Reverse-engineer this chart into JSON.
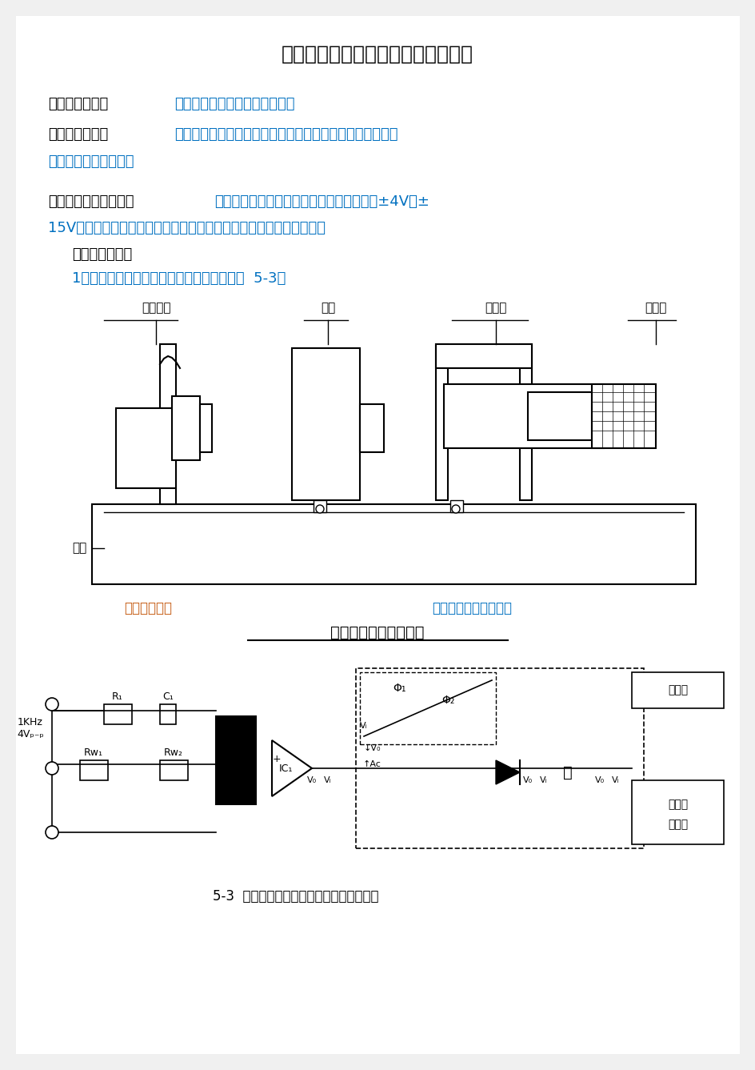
{
  "title": "交流激励时霍尔式传感器的位移实验",
  "title_color": "#000000",
  "bg_color": "#f0f0f0",
  "page_bg": "#ffffff",
  "section1_label": "一、实验目的：",
  "section1_text": "了解交流激励时霍尔片的特性。",
  "section2_label": "二、基本原理：",
  "section2_text1": "交流激励时霍尔元件与直流激励一样，基本工作原理相同，",
  "section2_text2": "不同之处是测量电路。",
  "section3_label": "三、需用器件与单元：",
  "section3_text1": "霍尔传感器实验模板、霍尔传感器、直流源±4V、±",
  "section3_text2": "15V、测微头、数显单元，相敏检波、移相、滤波模板、双线示波器。",
  "section4_label": "四、实验步骤：",
  "section4_step1": "1、传感器安装如下图，实验模板上连线见图  5-3。",
  "fig1_label1": "霍尔元件",
  "fig1_label2": "模板",
  "fig1_label3": "测量架",
  "fig1_label4": "测微头",
  "fig1_label5": "磁钢",
  "fig1_caption1": "霍尔实验模板",
  "fig1_caption2": "移相、相敏、低通模板",
  "fig1_title": "霍尔传感器安装示意图",
  "fig2_caption": "5-3  交流激励时霍尔传感器位移实验接线图",
  "label_color_blue": "#0070c0",
  "label_color_orange": "#c55a11",
  "text_color_black": "#000000",
  "text_color_blue": "#0070c0",
  "heading_color": "#000000"
}
